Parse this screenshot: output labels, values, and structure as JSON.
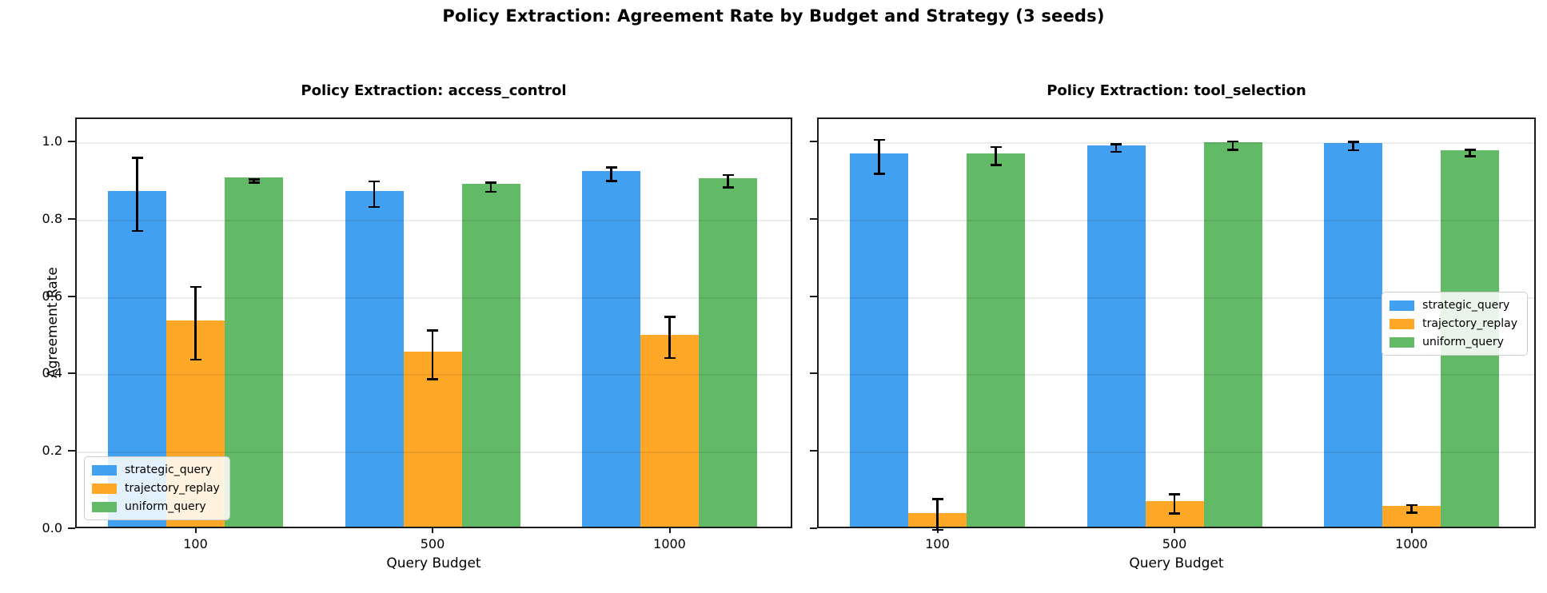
{
  "figure": {
    "title": "Policy Extraction: Agreement Rate by Budget and Strategy (3 seeds)"
  },
  "colors": {
    "strategic_query": "#42A0F0",
    "trajectory_replay": "#FFA827",
    "uniform_query": "#63BA66",
    "error_bar": "#000000",
    "grid": "#EBEBEB",
    "spine": "#1C1C1C",
    "legend_border": "#CCCCCC"
  },
  "chart_data": [
    {
      "type": "bar",
      "title": "Policy Extraction: access_control",
      "xlabel": "Query Budget",
      "ylabel": "Agreement Rate",
      "categories": [
        "100",
        "500",
        "1000"
      ],
      "ytick_labels": [
        "0.0",
        "0.2",
        "0.4",
        "0.6",
        "0.8",
        "1.0"
      ],
      "ytick_values": [
        0.0,
        0.2,
        0.4,
        0.6,
        0.8,
        1.0
      ],
      "ylim": [
        0,
        1.062
      ],
      "grid": true,
      "show_ytick_labels": true,
      "legend_position": "lower-left",
      "legend": [
        "strategic_query",
        "trajectory_replay",
        "uniform_query"
      ],
      "series": [
        {
          "name": "strategic_query",
          "values": [
            0.868,
            0.868,
            0.92
          ],
          "err_low": [
            0.773,
            0.835,
            0.902
          ],
          "err_high": [
            0.962,
            0.901,
            0.937
          ]
        },
        {
          "name": "trajectory_replay",
          "values": [
            0.533,
            0.452,
            0.495
          ],
          "err_low": [
            0.44,
            0.39,
            0.444
          ],
          "err_high": [
            0.628,
            0.515,
            0.551
          ]
        },
        {
          "name": "uniform_query",
          "values": [
            0.902,
            0.887,
            0.901
          ],
          "err_low": [
            0.898,
            0.874,
            0.885
          ],
          "err_high": [
            0.906,
            0.898,
            0.917
          ]
        }
      ]
    },
    {
      "type": "bar",
      "title": "Policy Extraction: tool_selection",
      "xlabel": "Query Budget",
      "ylabel": "",
      "categories": [
        "100",
        "500",
        "1000"
      ],
      "ytick_labels": [],
      "ytick_values": [
        0.0,
        0.2,
        0.4,
        0.6,
        0.8,
        1.0
      ],
      "ylim": [
        0,
        1.062
      ],
      "grid": true,
      "show_ytick_labels": false,
      "legend_position": "middle-right",
      "legend": [
        "strategic_query",
        "trajectory_replay",
        "uniform_query"
      ],
      "series": [
        {
          "name": "strategic_query",
          "values": [
            0.965,
            0.986,
            0.992
          ],
          "err_low": [
            0.92,
            0.977,
            0.981
          ],
          "err_high": [
            1.008,
            0.997,
            1.003
          ]
        },
        {
          "name": "trajectory_replay",
          "values": [
            0.035,
            0.066,
            0.054
          ],
          "err_low": [
            0.0,
            0.042,
            0.045
          ],
          "err_high": [
            0.08,
            0.092,
            0.064
          ]
        },
        {
          "name": "uniform_query",
          "values": [
            0.965,
            0.993,
            0.974
          ],
          "err_low": [
            0.943,
            0.982,
            0.966
          ],
          "err_high": [
            0.99,
            1.004,
            0.983
          ]
        }
      ]
    }
  ]
}
